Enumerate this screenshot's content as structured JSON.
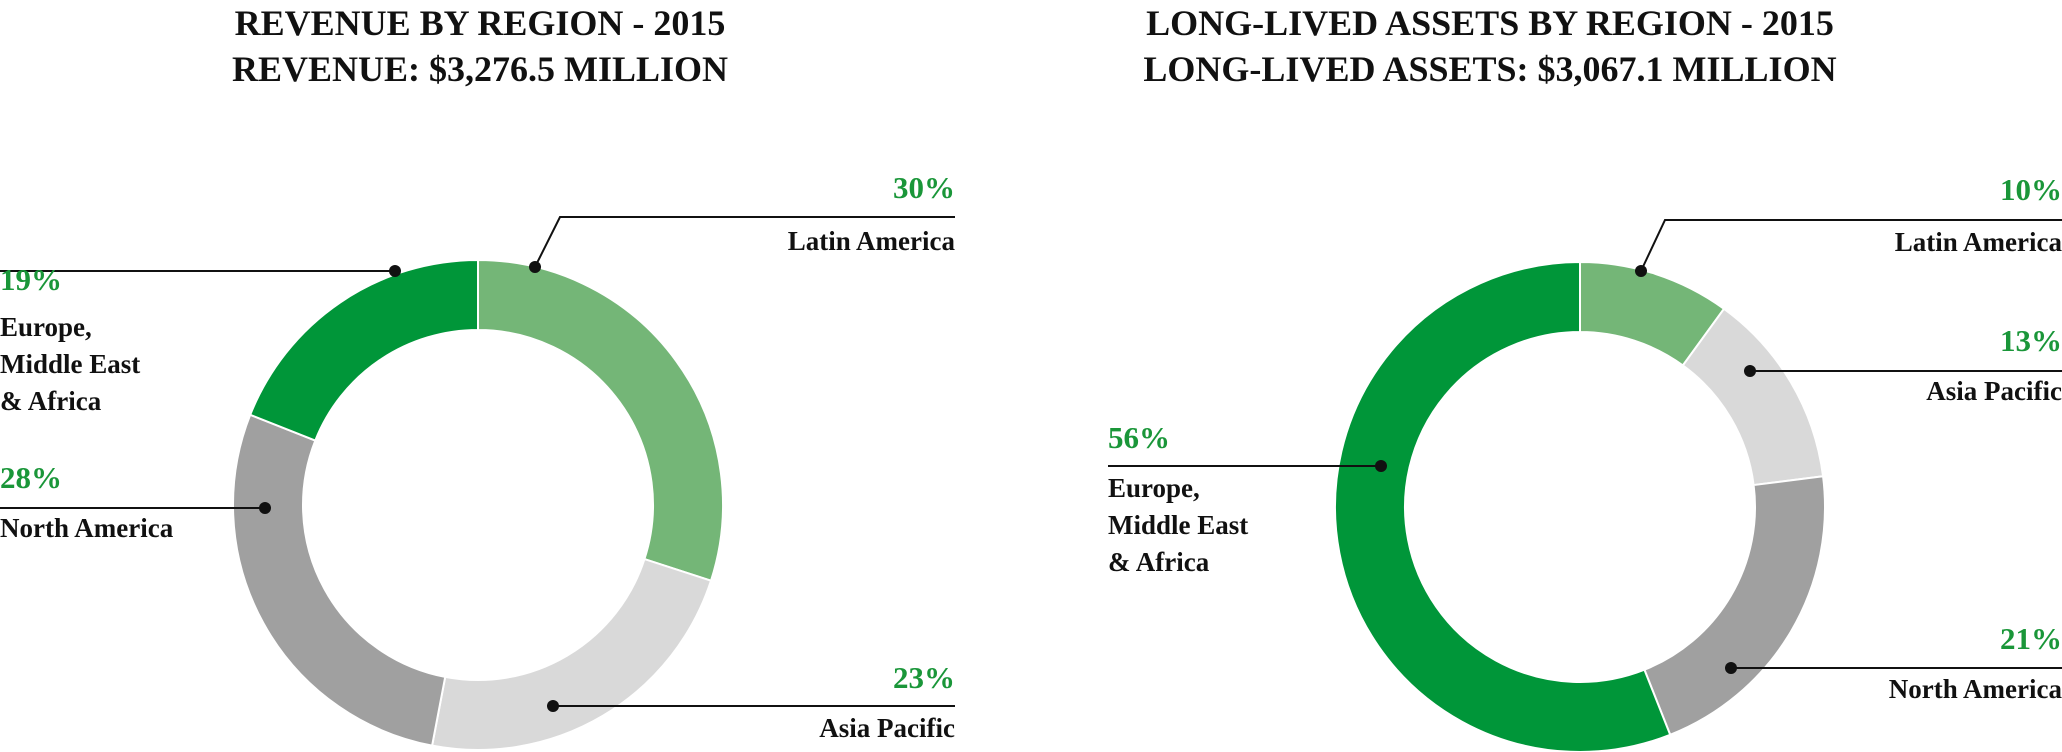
{
  "chart_data": [
    {
      "type": "pie",
      "title": "REVENUE BY REGION - 2015",
      "subtitle": "REVENUE: $3,276.5 MILLION",
      "slices": [
        {
          "label": "Latin America",
          "value": 30,
          "value_label": "30%",
          "color": "#74b677"
        },
        {
          "label": "Asia Pacific",
          "value": 23,
          "value_label": "23%",
          "color": "#d9d9d9"
        },
        {
          "label": "North America",
          "value": 28,
          "value_label": "28%",
          "color": "#a0a0a0"
        },
        {
          "label": "Europe,\nMiddle East\n& Africa",
          "value": 19,
          "value_label": "19%",
          "color": "#009639"
        }
      ]
    },
    {
      "type": "pie",
      "title": "LONG-LIVED ASSETS BY REGION - 2015",
      "subtitle": "LONG-LIVED ASSETS: $3,067.1 MILLION",
      "slices": [
        {
          "label": "Latin America",
          "value": 10,
          "value_label": "10%",
          "color": "#74b677"
        },
        {
          "label": "Asia Pacific",
          "value": 13,
          "value_label": "13%",
          "color": "#d9d9d9"
        },
        {
          "label": "North America",
          "value": 21,
          "value_label": "21%",
          "color": "#a0a0a0"
        },
        {
          "label": "Europe,\nMiddle East\n& Africa",
          "value": 56,
          "value_label": "56%",
          "color": "#009639"
        }
      ]
    }
  ]
}
